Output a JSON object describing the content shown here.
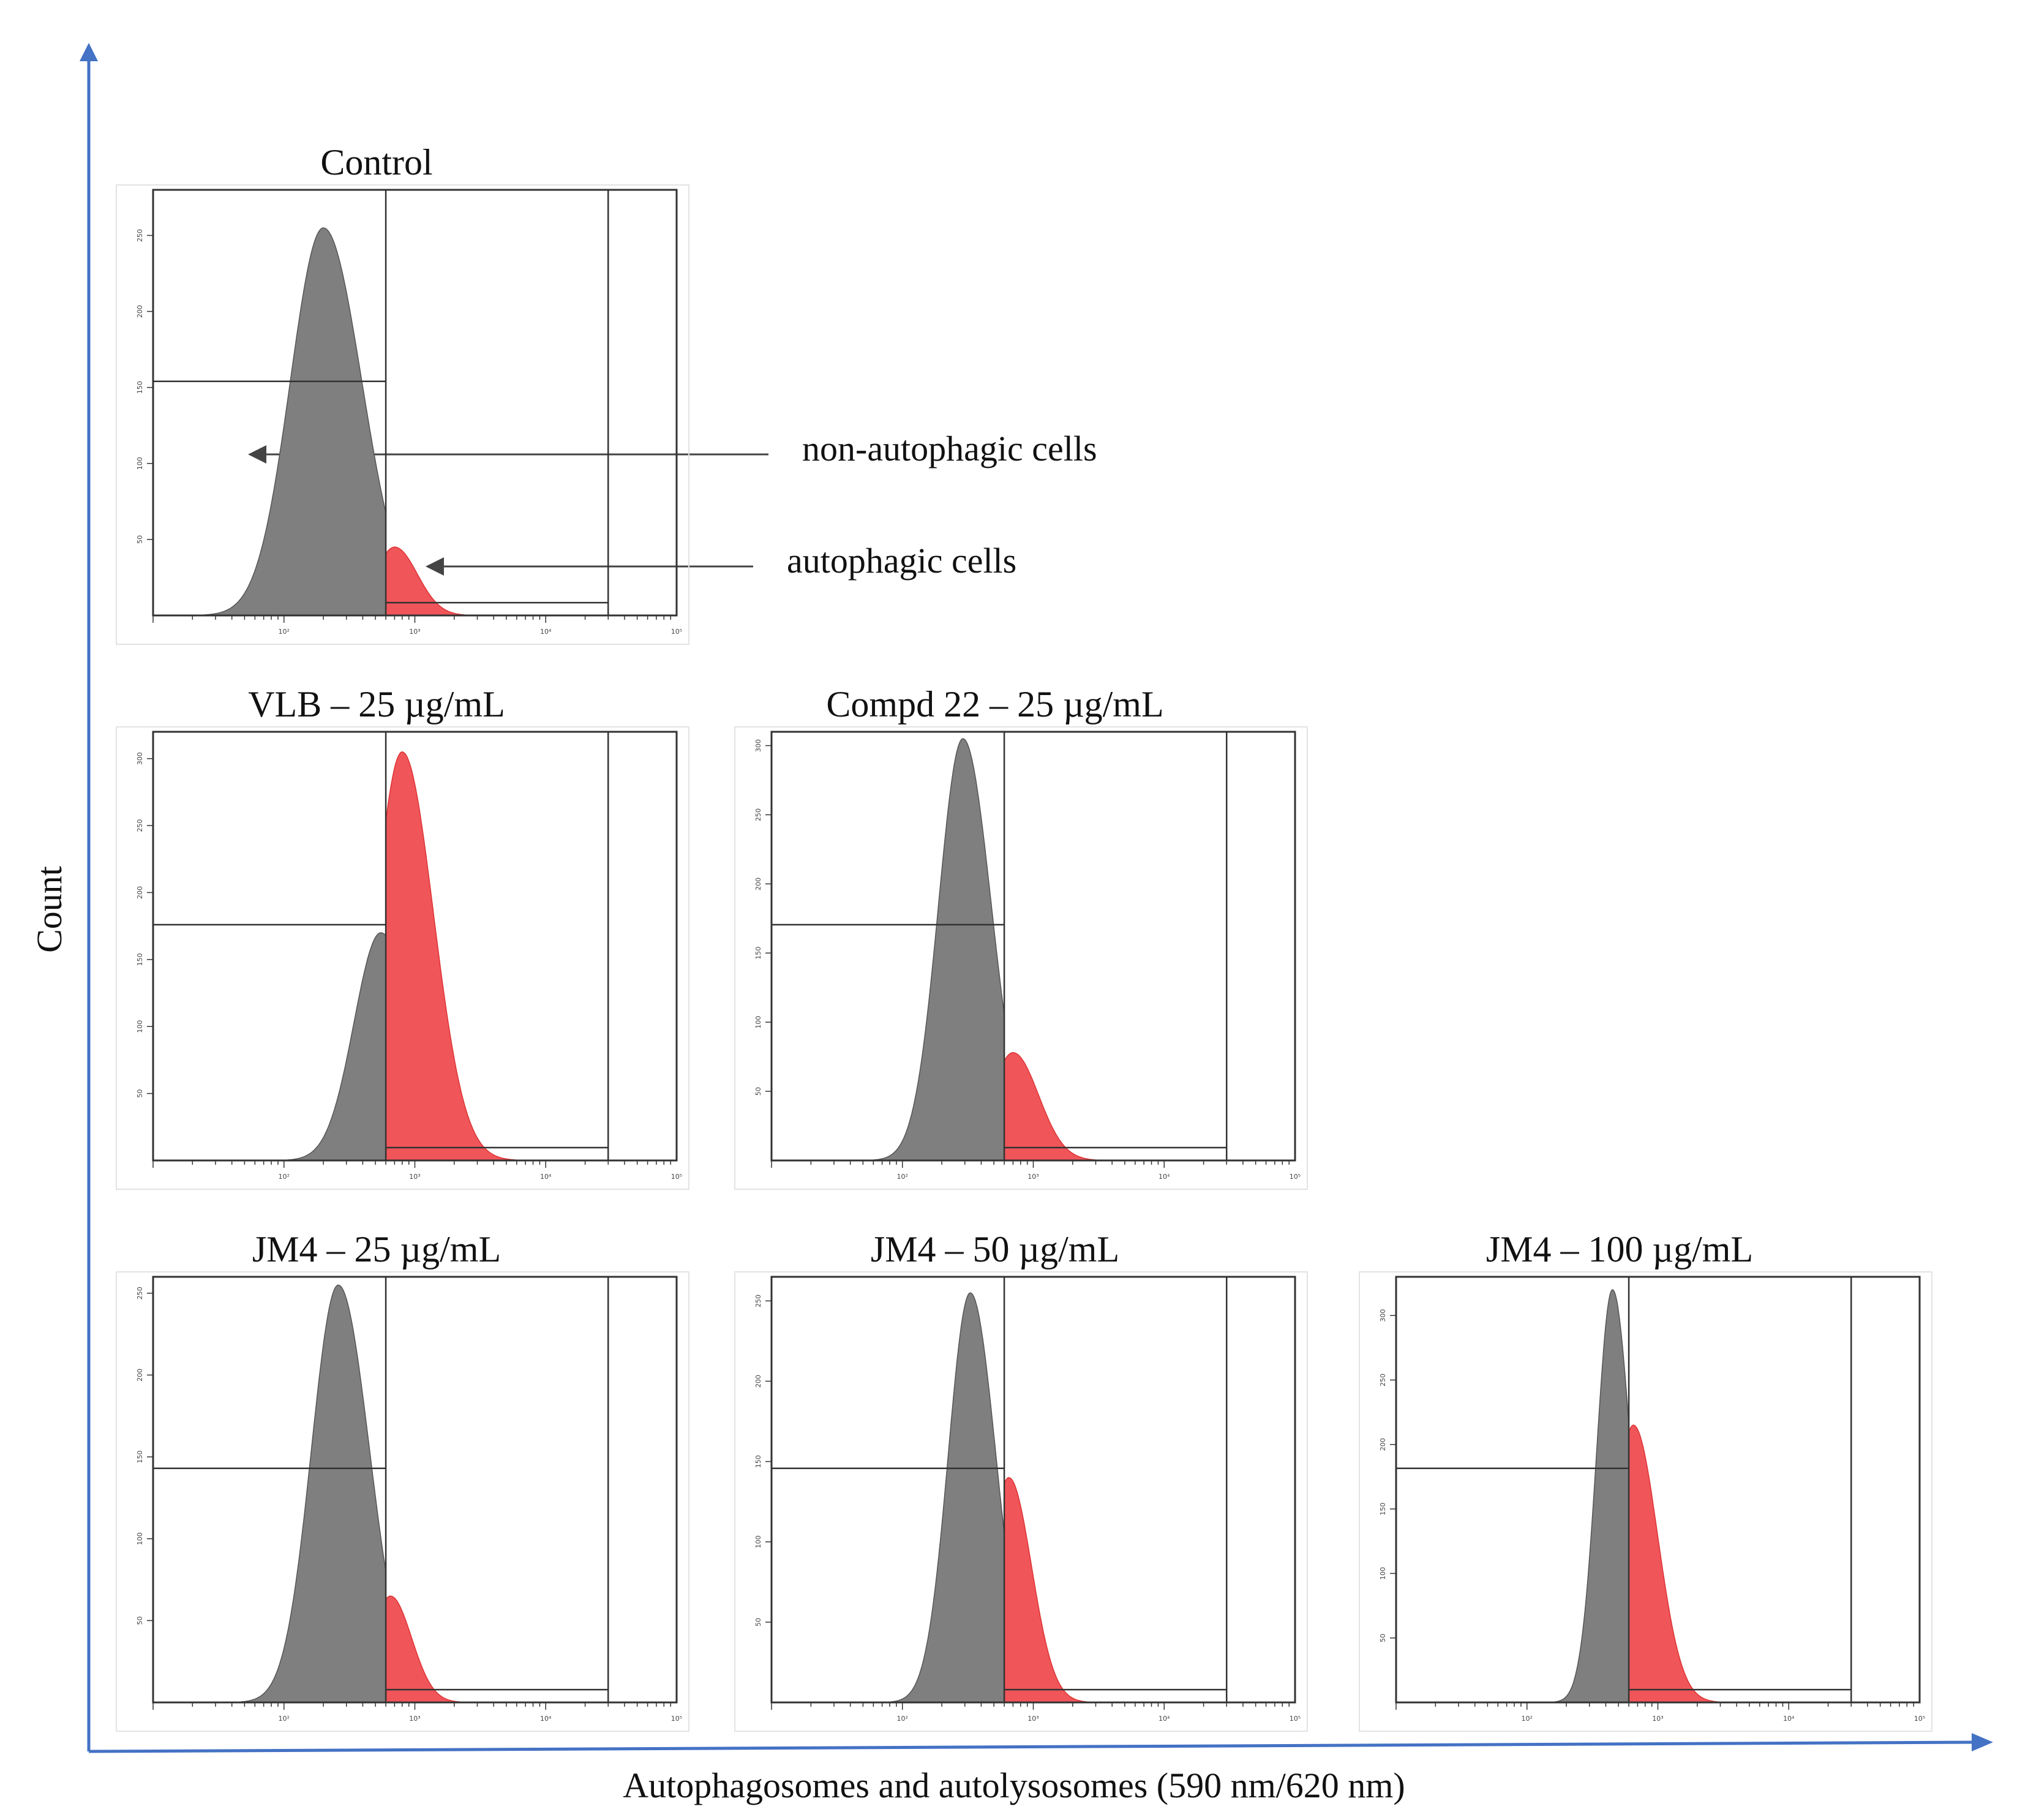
{
  "figure": {
    "xlabel": "Autophagosomes and autolysosomes (590 nm/620 nm)",
    "ylabel": "Count",
    "annotations": {
      "non_autophagic": "non-autophagic cells",
      "autophagic": "autophagic cells"
    },
    "colors": {
      "axis_arrow": "#4472c4",
      "non_autophagic_fill": "#7f7f7f",
      "autophagic_fill": "#f0555a",
      "frame": "#333333"
    }
  },
  "chart_data": [
    {
      "type": "area",
      "title": "Control",
      "x_scale": "log",
      "xlim": [
        10,
        100000
      ],
      "x_ticks": [
        "10²",
        "10³",
        "10⁴",
        "10⁵"
      ],
      "y_ticks": [
        "50",
        "100",
        "150",
        "200",
        "250"
      ],
      "ylim": [
        0,
        280
      ],
      "gate": 600,
      "non_autophagic": {
        "peak_x": 200,
        "peak_y": 255,
        "spread": 0.27
      },
      "autophagic": {
        "peak_x": 700,
        "peak_y": 45,
        "spread": 0.16
      }
    },
    {
      "type": "area",
      "title": "VLB – 25 µg/mL",
      "x_scale": "log",
      "xlim": [
        10,
        100000
      ],
      "x_ticks": [
        "10²",
        "10³",
        "10⁴",
        "10⁵"
      ],
      "y_ticks": [
        "50",
        "100",
        "150",
        "200",
        "250",
        "300"
      ],
      "ylim": [
        0,
        320
      ],
      "gate": 600,
      "non_autophagic": {
        "peak_x": 550,
        "peak_y": 170,
        "spread": 0.22
      },
      "autophagic": {
        "peak_x": 800,
        "peak_y": 305,
        "spread": 0.22
      }
    },
    {
      "type": "area",
      "title": "Compd 22 – 25 µg/mL",
      "x_scale": "log",
      "xlim": [
        10,
        100000
      ],
      "x_ticks": [
        "10²",
        "10³",
        "10⁴",
        "10⁵"
      ],
      "y_ticks": [
        "50",
        "100",
        "150",
        "200",
        "250",
        "300"
      ],
      "ylim": [
        0,
        310
      ],
      "gate": 600,
      "non_autophagic": {
        "peak_x": 290,
        "peak_y": 305,
        "spread": 0.2
      },
      "autophagic": {
        "peak_x": 700,
        "peak_y": 78,
        "spread": 0.18
      }
    },
    {
      "type": "area",
      "title": "JM4 – 25 µg/mL",
      "x_scale": "log",
      "xlim": [
        10,
        100000
      ],
      "x_ticks": [
        "10²",
        "10³",
        "10⁴",
        "10⁵"
      ],
      "y_ticks": [
        "50",
        "100",
        "150",
        "200",
        "250"
      ],
      "ylim": [
        0,
        260
      ],
      "gate": 600,
      "non_autophagic": {
        "peak_x": 260,
        "peak_y": 255,
        "spread": 0.22
      },
      "autophagic": {
        "peak_x": 650,
        "peak_y": 65,
        "spread": 0.15
      }
    },
    {
      "type": "area",
      "title": "JM4 – 50 µg/mL",
      "x_scale": "log",
      "xlim": [
        10,
        100000
      ],
      "x_ticks": [
        "10²",
        "10³",
        "10⁴",
        "10⁵"
      ],
      "y_ticks": [
        "50",
        "100",
        "150",
        "200",
        "250"
      ],
      "ylim": [
        0,
        265
      ],
      "gate": 600,
      "non_autophagic": {
        "peak_x": 330,
        "peak_y": 255,
        "spread": 0.18
      },
      "autophagic": {
        "peak_x": 650,
        "peak_y": 140,
        "spread": 0.16
      }
    },
    {
      "type": "area",
      "title": "JM4 – 100 µg/mL",
      "x_scale": "log",
      "xlim": [
        10,
        100000
      ],
      "x_ticks": [
        "10²",
        "10³",
        "10⁴",
        "10⁵"
      ],
      "y_ticks": [
        "50",
        "100",
        "150",
        "200",
        "250",
        "300"
      ],
      "ylim": [
        0,
        330
      ],
      "gate": 600,
      "non_autophagic": {
        "peak_x": 450,
        "peak_y": 320,
        "spread": 0.13
      },
      "autophagic": {
        "peak_x": 650,
        "peak_y": 215,
        "spread": 0.17
      }
    }
  ]
}
